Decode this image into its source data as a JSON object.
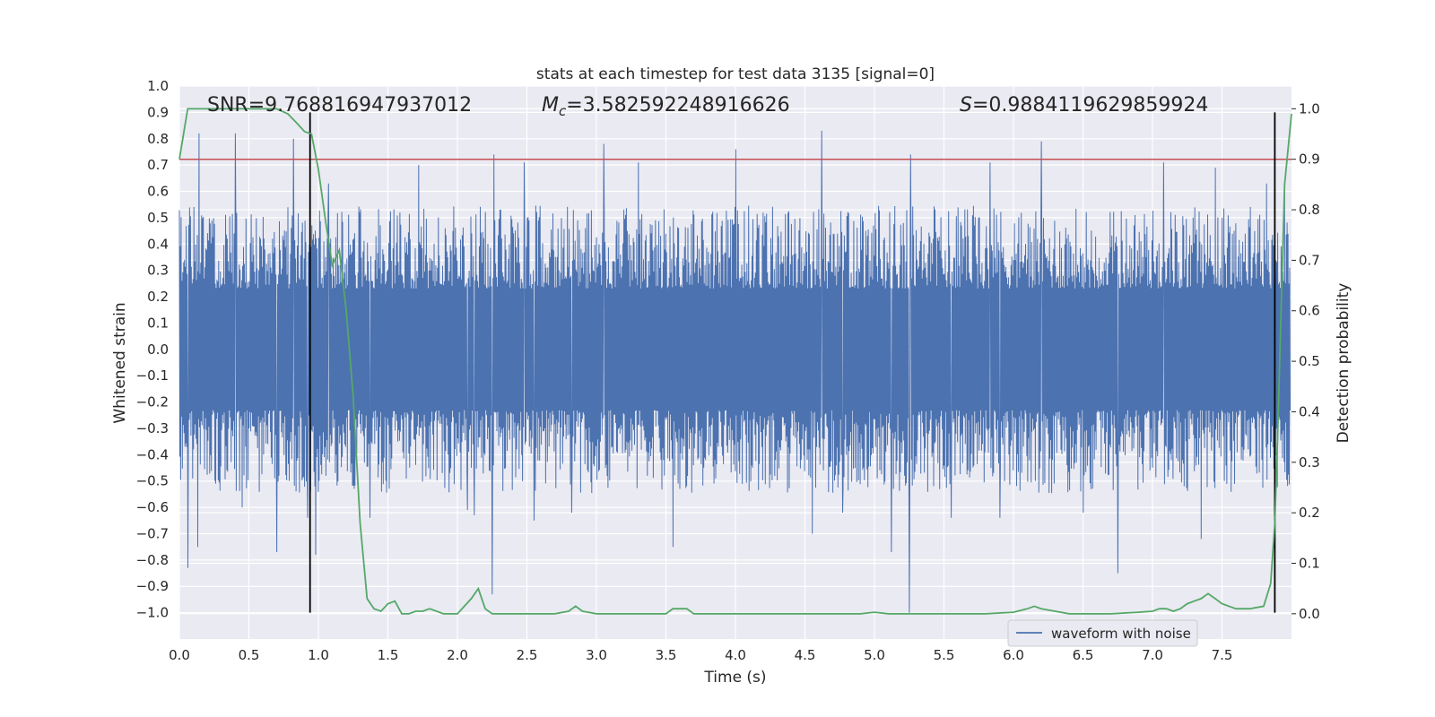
{
  "chart_data": {
    "type": "line",
    "title": "stats at each timestep for test data 3135 [signal=0]",
    "xlabel": "Time (s)",
    "ylabel": "Whitened strain",
    "y2label": "Detection probability",
    "xlim": [
      0.0,
      8.0
    ],
    "ylim": [
      -1.1,
      1.0
    ],
    "y2lim": [
      -0.05,
      1.045
    ],
    "xticks": [
      "0.0",
      "0.5",
      "1.0",
      "1.5",
      "2.0",
      "2.5",
      "3.0",
      "3.5",
      "4.0",
      "4.5",
      "5.0",
      "5.5",
      "6.0",
      "6.5",
      "7.0",
      "7.5"
    ],
    "yticks": [
      "1.0",
      "0.9",
      "0.8",
      "0.7",
      "0.6",
      "0.5",
      "0.4",
      "0.3",
      "0.2",
      "0.1",
      "0.0",
      "−0.1",
      "−0.2",
      "−0.3",
      "−0.4",
      "−0.5",
      "−0.6",
      "−0.7",
      "−0.8",
      "−0.9",
      "−1.0"
    ],
    "y2ticks": [
      "1.0",
      "0.9",
      "0.8",
      "0.7",
      "0.6",
      "0.5",
      "0.4",
      "0.3",
      "0.2",
      "0.1",
      "0.0"
    ],
    "grid": true,
    "annotations": {
      "snr": "SNR=9.768816947937012",
      "mc_symbol": "M",
      "mc_sub": "c",
      "mc_value": "=3.582592248916626",
      "s_symbol": "S",
      "s_value": "=0.9884119629859924"
    },
    "legend": {
      "placement": "lower-right",
      "entries": [
        "waveform with noise"
      ]
    },
    "series": [
      {
        "name": "waveform with noise",
        "axis": "left",
        "color": "#4c72b0",
        "typical_amplitude": 0.42,
        "peaks": [
          [
            0.06,
            -0.83
          ],
          [
            0.13,
            -0.75
          ],
          [
            0.14,
            0.82
          ],
          [
            0.4,
            0.82
          ],
          [
            0.45,
            -0.6
          ],
          [
            0.7,
            -0.77
          ],
          [
            0.82,
            0.8
          ],
          [
            0.92,
            -0.64
          ],
          [
            0.98,
            -0.78
          ],
          [
            1.07,
            0.63
          ],
          [
            1.37,
            -0.64
          ],
          [
            1.72,
            0.7
          ],
          [
            2.07,
            -0.61
          ],
          [
            2.12,
            -0.63
          ],
          [
            2.25,
            -0.93
          ],
          [
            2.26,
            0.74
          ],
          [
            2.48,
            0.71
          ],
          [
            2.55,
            -0.65
          ],
          [
            2.82,
            -0.62
          ],
          [
            3.05,
            0.78
          ],
          [
            3.3,
            0.71
          ],
          [
            3.55,
            -0.75
          ],
          [
            4.0,
            0.76
          ],
          [
            4.55,
            -0.7
          ],
          [
            4.62,
            0.83
          ],
          [
            4.77,
            -0.62
          ],
          [
            5.12,
            -0.77
          ],
          [
            5.25,
            -1.0
          ],
          [
            5.26,
            0.74
          ],
          [
            5.55,
            -0.64
          ],
          [
            5.83,
            0.71
          ],
          [
            5.9,
            -0.64
          ],
          [
            6.2,
            0.79
          ],
          [
            6.5,
            -0.62
          ],
          [
            6.75,
            -0.85
          ],
          [
            7.08,
            0.71
          ],
          [
            7.35,
            -0.72
          ],
          [
            7.45,
            0.69
          ],
          [
            7.82,
            0.63
          ],
          [
            7.95,
            0.63
          ]
        ]
      },
      {
        "name": "",
        "axis": "right",
        "color": "#55a868",
        "x": [
          0.0,
          0.06,
          0.1,
          0.3,
          0.5,
          0.7,
          0.78,
          0.85,
          0.9,
          0.95,
          1.0,
          1.05,
          1.1,
          1.15,
          1.2,
          1.25,
          1.3,
          1.35,
          1.4,
          1.45,
          1.5,
          1.55,
          1.6,
          1.65,
          1.7,
          1.75,
          1.8,
          1.85,
          1.9,
          1.95,
          2.0,
          2.1,
          2.15,
          2.2,
          2.25,
          2.3,
          2.4,
          2.5,
          2.6,
          2.7,
          2.8,
          2.85,
          2.9,
          3.0,
          3.1,
          3.2,
          3.3,
          3.4,
          3.5,
          3.55,
          3.6,
          3.65,
          3.7,
          3.8,
          3.9,
          4.0,
          4.5,
          4.9,
          5.0,
          5.1,
          5.2,
          5.5,
          5.8,
          6.0,
          6.1,
          6.15,
          6.2,
          6.3,
          6.4,
          6.5,
          6.7,
          6.9,
          7.0,
          7.05,
          7.1,
          7.15,
          7.2,
          7.25,
          7.3,
          7.35,
          7.4,
          7.45,
          7.5,
          7.6,
          7.7,
          7.8,
          7.85,
          7.88,
          7.9,
          7.92,
          7.95,
          8.0
        ],
        "y": [
          0.9,
          1.0,
          1.0,
          1.0,
          1.0,
          1.0,
          0.99,
          0.97,
          0.955,
          0.95,
          0.88,
          0.78,
          0.69,
          0.72,
          0.6,
          0.43,
          0.18,
          0.03,
          0.01,
          0.005,
          0.02,
          0.025,
          0.0,
          0.0,
          0.005,
          0.005,
          0.01,
          0.005,
          0.0,
          0.0,
          0.0,
          0.03,
          0.05,
          0.01,
          0.0,
          0.0,
          0.0,
          0.0,
          0.0,
          0.0,
          0.005,
          0.015,
          0.005,
          0.0,
          0.0,
          0.0,
          0.0,
          0.0,
          0.0,
          0.01,
          0.01,
          0.01,
          0.0,
          0.0,
          0.0,
          0.0,
          0.0,
          0.0,
          0.003,
          0.0,
          0.0,
          0.0,
          0.0,
          0.003,
          0.01,
          0.015,
          0.01,
          0.005,
          0.0,
          0.0,
          0.0,
          0.003,
          0.005,
          0.01,
          0.01,
          0.005,
          0.01,
          0.02,
          0.025,
          0.03,
          0.04,
          0.03,
          0.02,
          0.01,
          0.01,
          0.015,
          0.06,
          0.18,
          0.35,
          0.55,
          0.85,
          0.99
        ]
      }
    ],
    "hlines": [
      {
        "axis": "right",
        "y": 0.9,
        "color": "#c44e52"
      }
    ],
    "vlines": [
      {
        "x": 0.94,
        "ymin": -1.0,
        "ymax": 0.9,
        "color": "#000000"
      },
      {
        "x": 7.88,
        "ymin": -1.0,
        "ymax": 0.9,
        "color": "#000000"
      }
    ]
  }
}
